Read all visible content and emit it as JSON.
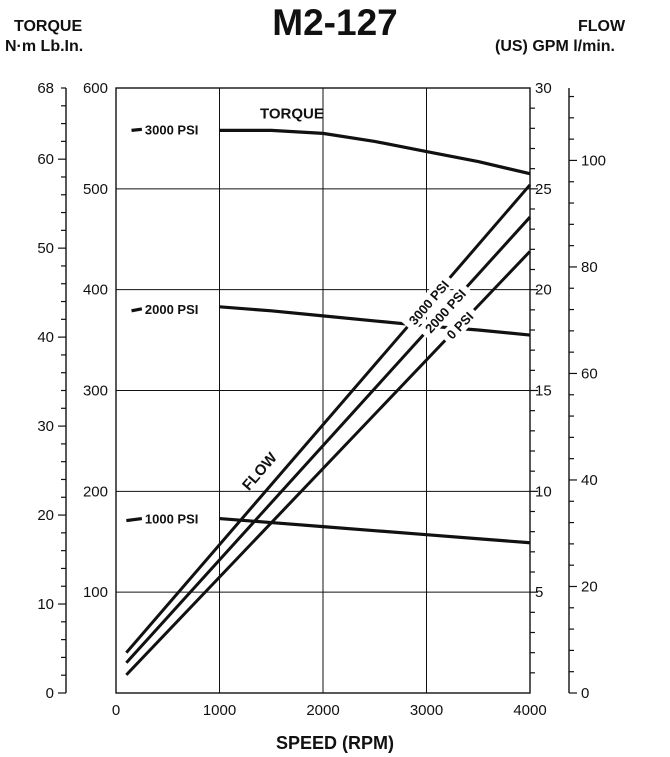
{
  "chart_data": {
    "type": "line",
    "title": "M2-127",
    "xlabel": "SPEED (RPM)",
    "x_ticks": [
      0,
      1000,
      2000,
      3000,
      4000
    ],
    "xlim": [
      0,
      4000
    ],
    "y_left": {
      "label_line1": "TORQUE",
      "label_line2": "N·m Lb.In.",
      "lbin_ticks": [
        100,
        200,
        300,
        400,
        500,
        600
      ],
      "lbin_lim": [
        0,
        600
      ],
      "nm_ticks": [
        0,
        10,
        20,
        30,
        40,
        50,
        60,
        68
      ],
      "nm_lim": [
        0,
        68
      ]
    },
    "y_right": {
      "label_line1": "FLOW",
      "label_line2": "(US) GPM l/min.",
      "gpm_ticks": [
        5,
        10,
        15,
        20,
        25,
        30
      ],
      "gpm_lim": [
        0,
        30
      ],
      "lpm_ticks": [
        0,
        20,
        40,
        60,
        80,
        100
      ],
      "lpm_lim": [
        0,
        113.6
      ]
    },
    "torque_series": [
      {
        "name": "3000 PSI",
        "x": [
          1000,
          1500,
          2000,
          2500,
          3000,
          3500,
          4000
        ],
        "y": [
          558,
          558,
          555,
          547,
          537,
          527,
          515
        ]
      },
      {
        "name": "2000 PSI",
        "x": [
          1000,
          1500,
          2000,
          2500,
          3000,
          3500,
          4000
        ],
        "y": [
          383,
          379,
          374,
          369,
          364,
          360,
          355
        ]
      },
      {
        "name": "1000 PSI",
        "x": [
          1000,
          1500,
          2000,
          2500,
          3000,
          3500,
          4000
        ],
        "y": [
          173,
          169,
          165,
          161,
          157,
          153,
          149
        ]
      }
    ],
    "torque_start_dashes": [
      {
        "x": [
          150,
          250
        ],
        "y": [
          558,
          559
        ]
      },
      {
        "x": [
          150,
          250
        ],
        "y": [
          379,
          381
        ]
      },
      {
        "x": [
          100,
          250
        ],
        "y": [
          171,
          173
        ]
      }
    ],
    "torque_label_title": "TORQUE",
    "flow_label": "FLOW",
    "flow_series": [
      {
        "name": "3000 PSI",
        "x": [
          100,
          4000
        ],
        "y": [
          2.0,
          25.2
        ]
      },
      {
        "name": "2000 PSI",
        "x": [
          100,
          4000
        ],
        "y": [
          1.5,
          23.6
        ]
      },
      {
        "name": "0 PSI",
        "x": [
          100,
          4000
        ],
        "y": [
          0.9,
          21.9
        ]
      }
    ],
    "grid": true
  }
}
